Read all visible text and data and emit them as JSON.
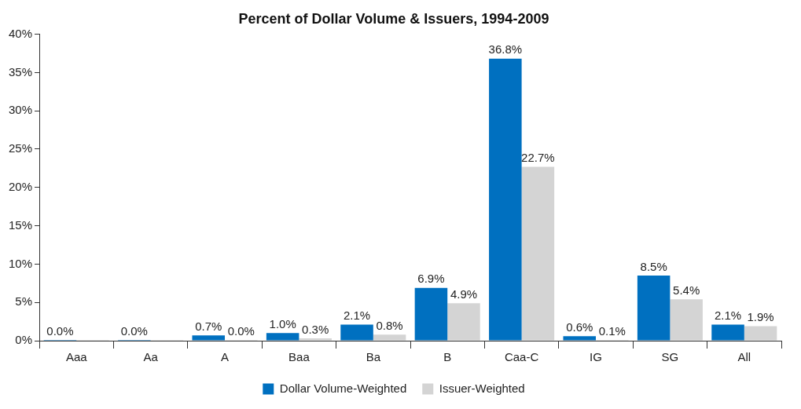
{
  "chart_data": {
    "type": "bar",
    "title": "Percent of Dollar Volume & Issuers, 1994-2009",
    "categories": [
      "Aaa",
      "Aa",
      "A",
      "Baa",
      "Ba",
      "B",
      "Caa-C",
      "IG",
      "SG",
      "All"
    ],
    "series": [
      {
        "name": "Dollar Volume-Weighted",
        "color": "#0070c0",
        "values": [
          0.0,
          0.0,
          0.7,
          1.0,
          2.1,
          6.9,
          36.8,
          0.6,
          8.5,
          2.1
        ],
        "value_labels": [
          "0.0%",
          "0.0%",
          "0.7%",
          "1.0%",
          "2.1%",
          "6.9%",
          "36.8%",
          "0.6%",
          "8.5%",
          "2.1%"
        ]
      },
      {
        "name": "Issuer-Weighted",
        "color": "#d4d4d4",
        "values": [
          0.0,
          0.0,
          0.0,
          0.3,
          0.8,
          4.9,
          22.7,
          0.1,
          5.4,
          1.9
        ],
        "value_labels": [
          null,
          null,
          "0.0%",
          "0.3%",
          "0.8%",
          "4.9%",
          "22.7%",
          "0.1%",
          "5.4%",
          "1.9%"
        ]
      }
    ],
    "ylim": [
      0,
      40
    ],
    "yticks": [
      {
        "value": 0,
        "label": "0%"
      },
      {
        "value": 5,
        "label": "5%"
      },
      {
        "value": 10,
        "label": "10%"
      },
      {
        "value": 15,
        "label": "15%"
      },
      {
        "value": 20,
        "label": "20%"
      },
      {
        "value": 25,
        "label": "25%"
      },
      {
        "value": 30,
        "label": "30%"
      },
      {
        "value": 35,
        "label": "35%"
      },
      {
        "value": 40,
        "label": "40%"
      }
    ],
    "grid": false,
    "legend": "bottom"
  }
}
